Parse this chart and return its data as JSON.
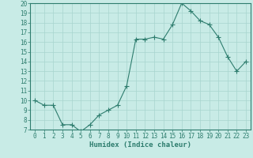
{
  "x": [
    0,
    1,
    2,
    3,
    4,
    5,
    6,
    7,
    8,
    9,
    10,
    11,
    12,
    13,
    14,
    15,
    16,
    17,
    18,
    19,
    20,
    21,
    22,
    23
  ],
  "y": [
    10,
    9.5,
    9.5,
    7.5,
    7.5,
    6.8,
    7.5,
    8.5,
    9.0,
    9.5,
    11.5,
    16.3,
    16.3,
    16.5,
    16.3,
    17.8,
    20.0,
    19.2,
    18.2,
    17.8,
    16.5,
    14.5,
    13.0,
    14.0
  ],
  "line_color": "#2e7d6e",
  "marker": "D",
  "marker_size": 2.0,
  "bg_color": "#c8ebe6",
  "grid_color": "#a8d5ce",
  "xlabel": "Humidex (Indice chaleur)",
  "xlim": [
    -0.5,
    23.5
  ],
  "ylim": [
    7,
    20
  ],
  "yticks": [
    7,
    8,
    9,
    10,
    11,
    12,
    13,
    14,
    15,
    16,
    17,
    18,
    19,
    20
  ],
  "xticks": [
    0,
    1,
    2,
    3,
    4,
    5,
    6,
    7,
    8,
    9,
    10,
    11,
    12,
    13,
    14,
    15,
    16,
    17,
    18,
    19,
    20,
    21,
    22,
    23
  ],
  "tick_fontsize": 5.5,
  "xlabel_fontsize": 6.5
}
